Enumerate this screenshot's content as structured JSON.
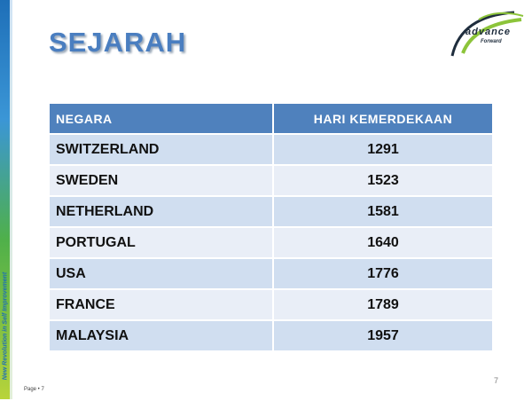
{
  "slide": {
    "title": "SEJARAH",
    "side_text": "New Revolution in Self Improvement",
    "page_number": "7",
    "footer_page": "Page • 7"
  },
  "logo": {
    "text": "advance",
    "sub": "Forward"
  },
  "table": {
    "headers": [
      "NEGARA",
      "HARI KEMERDEKAAN"
    ],
    "rows": [
      {
        "country": "SWITZERLAND",
        "year": "1291"
      },
      {
        "country": "SWEDEN",
        "year": "1523"
      },
      {
        "country": "NETHERLAND",
        "year": "1581"
      },
      {
        "country": "PORTUGAL",
        "year": "1640"
      },
      {
        "country": "USA",
        "year": "1776"
      },
      {
        "country": "FRANCE",
        "year": "1789"
      },
      {
        "country": "MALAYSIA",
        "year": "1957"
      }
    ]
  },
  "colors": {
    "header_bg": "#4f81bd",
    "row_dark": "#d0def0",
    "row_light": "#e9eef7",
    "title": "#4a7ec0"
  }
}
